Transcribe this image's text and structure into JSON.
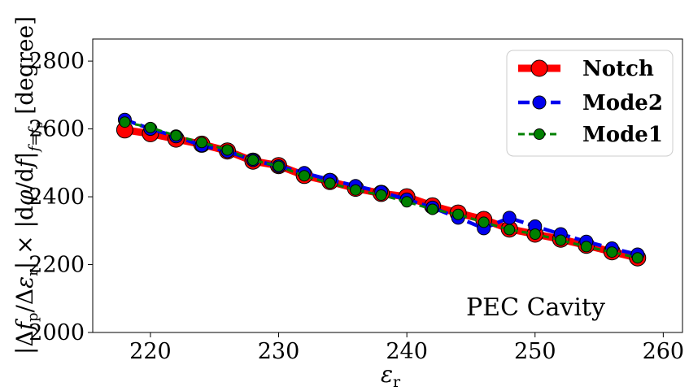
{
  "chart_data": {
    "type": "line",
    "title": "",
    "xlabel": "εr",
    "ylabel": "|Δfp/Δεr| × |dφ/df|f=fp [degree]",
    "xlim": [
      215.5,
      261.5
    ],
    "ylim": [
      2000,
      2865
    ],
    "xticks": [
      220,
      230,
      240,
      250,
      260
    ],
    "yticks": [
      2000,
      2200,
      2400,
      2600,
      2800
    ],
    "x": [
      218,
      220,
      222,
      224,
      226,
      228,
      230,
      232,
      234,
      236,
      238,
      240,
      242,
      244,
      246,
      248,
      250,
      252,
      254,
      256,
      258
    ],
    "series": [
      {
        "name": "Notch",
        "color": "#ff0000",
        "style": "solid",
        "values": [
          2597,
          2586,
          2570,
          2555,
          2535,
          2505,
          2492,
          2463,
          2445,
          2425,
          2410,
          2400,
          2373,
          2352,
          2333,
          2305,
          2290,
          2275,
          2257,
          2238,
          2220
        ]
      },
      {
        "name": "Mode2",
        "color": "#0000ee",
        "style": "dashed",
        "values": [
          2627,
          2600,
          2578,
          2551,
          2534,
          2508,
          2490,
          2470,
          2450,
          2432,
          2414,
          2392,
          2368,
          2338,
          2307,
          2338,
          2313,
          2290,
          2268,
          2248,
          2230
        ]
      },
      {
        "name": "Mode1",
        "color": "#008000",
        "style": "dashed",
        "values": [
          2620,
          2604,
          2580,
          2560,
          2538,
          2508,
          2490,
          2462,
          2440,
          2420,
          2405,
          2385,
          2363,
          2348,
          2325,
          2303,
          2290,
          2272,
          2253,
          2237,
          2220
        ]
      }
    ],
    "legend_position": "top-right",
    "annotation": "PEC Cavity",
    "grid": false
  }
}
